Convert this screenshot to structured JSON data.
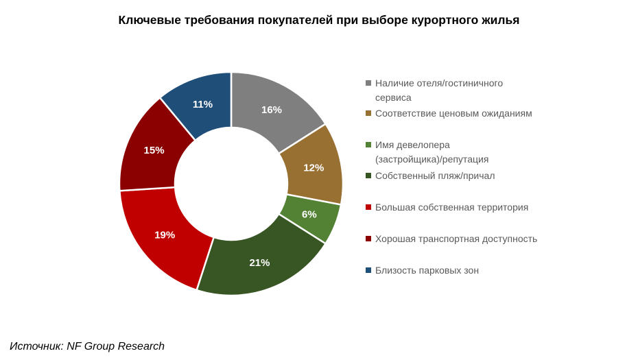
{
  "title": "Ключевые требования покупателей при выборе курортного жилья",
  "source": "Источник: NF Group Research",
  "chart_data": {
    "type": "pie",
    "variant": "donut",
    "title": "Ключевые требования покупателей при выборе курортного жилья",
    "unit": "%",
    "legend_position": "right",
    "categories": [
      "Наличие отеля/гостиничного сервиса",
      "Соответствие ценовым ожиданиям",
      "Имя девелопера (застройщика)/репутация",
      "Собственный пляж/причал",
      "Большая собственная территория",
      "Хорошая транспортная доступность",
      "Близость парковых зон"
    ],
    "values": [
      16,
      12,
      6,
      21,
      19,
      15,
      11
    ],
    "labels": [
      "16%",
      "12%",
      "6%",
      "21%",
      "19%",
      "15%",
      "11%"
    ],
    "colors": [
      "#7f7f7f",
      "#977032",
      "#548235",
      "#375623",
      "#c00000",
      "#8b0000",
      "#1f4e79"
    ]
  },
  "legend": [
    {
      "lines": [
        "Наличие отеля/гостиничного",
        "сервиса"
      ]
    },
    {
      "lines": [
        "Соответствие ценовым ожиданиям"
      ]
    },
    {
      "lines": [
        "Имя девелопера",
        "(застройщика)/репутация"
      ]
    },
    {
      "lines": [
        "Собственный пляж/причал"
      ]
    },
    {
      "lines": [
        "Большая собственная территория"
      ]
    },
    {
      "lines": [
        "Хорошая транспортная доступность"
      ]
    },
    {
      "lines": [
        "Близость парковых зон"
      ]
    }
  ]
}
